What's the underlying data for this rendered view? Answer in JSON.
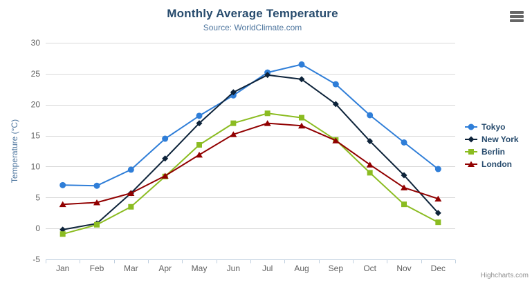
{
  "title": "Monthly Average Temperature",
  "subtitle": "Source: WorldClimate.com",
  "credits": "Highcharts.com",
  "export_menu_icon": "hamburger-menu-icon",
  "colors": {
    "title": "#274b6d",
    "subtitle": "#4d759e",
    "axis_labels": "#606060",
    "axis_title": "#4d759e",
    "gridline": "#d8d8d8",
    "axis_line": "#c0d0e0",
    "legend_text": "#274b6d",
    "credits_text": "#909090"
  },
  "chart_data": {
    "type": "line",
    "title": "Monthly Average Temperature",
    "subtitle": "Source: WorldClimate.com",
    "xlabel": "",
    "ylabel": "Temperature (°C)",
    "categories": [
      "Jan",
      "Feb",
      "Mar",
      "Apr",
      "May",
      "Jun",
      "Jul",
      "Aug",
      "Sep",
      "Oct",
      "Nov",
      "Dec"
    ],
    "series": [
      {
        "name": "Tokyo",
        "color": "#2f7ed8",
        "marker": "circle",
        "values": [
          7.0,
          6.9,
          9.5,
          14.5,
          18.2,
          21.5,
          25.2,
          26.5,
          23.3,
          18.3,
          13.9,
          9.6
        ]
      },
      {
        "name": "New York",
        "color": "#0d233a",
        "marker": "diamond",
        "values": [
          -0.2,
          0.8,
          5.7,
          11.3,
          17.0,
          22.0,
          24.8,
          24.1,
          20.1,
          14.1,
          8.6,
          2.5
        ]
      },
      {
        "name": "Berlin",
        "color": "#8bbc21",
        "marker": "square",
        "values": [
          -0.9,
          0.6,
          3.5,
          8.4,
          13.5,
          17.0,
          18.6,
          17.9,
          14.3,
          9.0,
          3.9,
          1.0
        ]
      },
      {
        "name": "London",
        "color": "#910000",
        "marker": "triangle",
        "values": [
          3.9,
          4.2,
          5.7,
          8.5,
          11.9,
          15.2,
          17.0,
          16.6,
          14.2,
          10.3,
          6.6,
          4.8
        ]
      }
    ],
    "ylim": [
      -5,
      30
    ],
    "ytick_step": 5,
    "grid": true,
    "legend_position": "right"
  }
}
